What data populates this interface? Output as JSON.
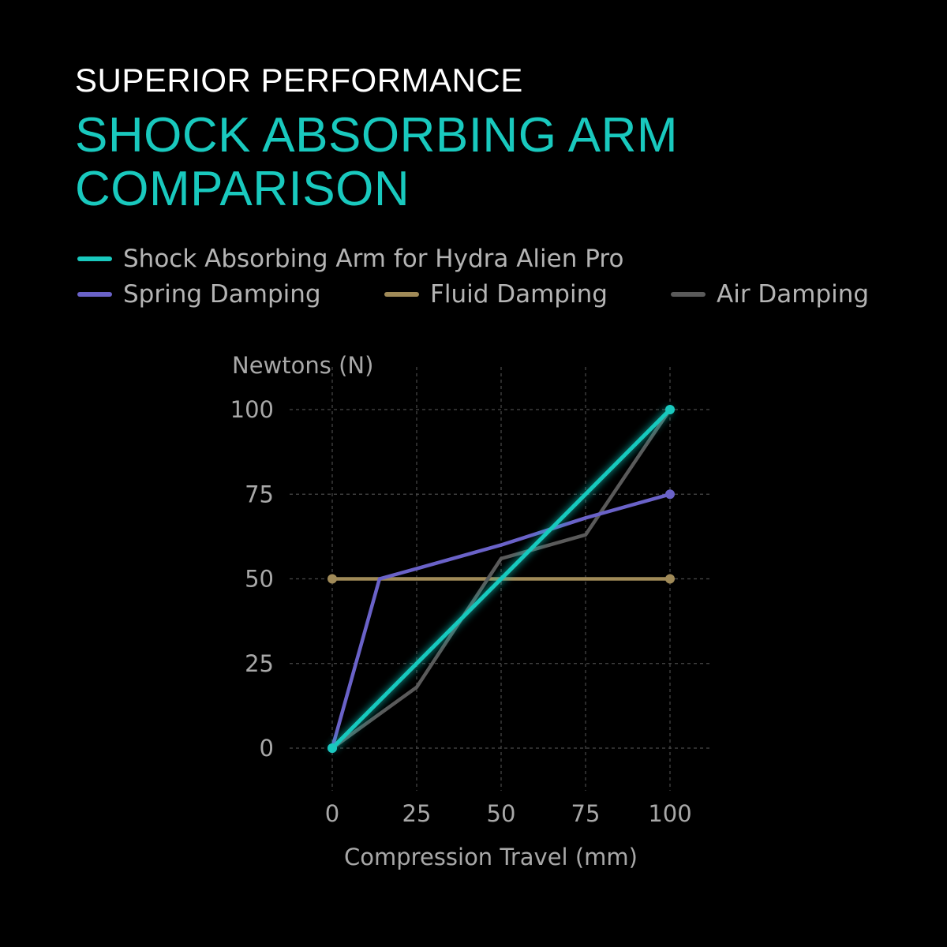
{
  "header": {
    "subtitle": "SUPERIOR PERFORMANCE",
    "title_line1": "SHOCK ABSORBING ARM",
    "title_line2": "COMPARISON"
  },
  "colors": {
    "background": "#000000",
    "accent": "#19c9be",
    "spring": "#6a62c8",
    "fluid": "#a08a58",
    "air": "#5a5a5a",
    "grid": "#4a4a4a",
    "text": "#a8a8a8"
  },
  "chart_data": {
    "type": "line",
    "title": "",
    "xlabel": "Compression Travel (mm)",
    "ylabel": "Newtons (N)",
    "xlim": [
      0,
      100
    ],
    "ylim": [
      0,
      100
    ],
    "xticks": [
      0,
      25,
      50,
      75,
      100
    ],
    "yticks": [
      0,
      25,
      50,
      75,
      100
    ],
    "grid": true,
    "legend": "top",
    "series": [
      {
        "name": "Shock Absorbing Arm for Hydra Alien Pro",
        "color": "#19c9be",
        "points": [
          [
            0,
            0
          ],
          [
            100,
            100
          ]
        ],
        "markers": [
          [
            0,
            0
          ],
          [
            100,
            100
          ]
        ]
      },
      {
        "name": "Spring Damping",
        "color": "#6a62c8",
        "points": [
          [
            0,
            0
          ],
          [
            14,
            50
          ],
          [
            25,
            53
          ],
          [
            50,
            60
          ],
          [
            75,
            68
          ],
          [
            100,
            75
          ]
        ],
        "markers": [
          [
            0,
            0
          ],
          [
            100,
            75
          ]
        ]
      },
      {
        "name": "Fluid Damping",
        "color": "#a08a58",
        "points": [
          [
            0,
            50
          ],
          [
            100,
            50
          ]
        ],
        "markers": [
          [
            0,
            50
          ],
          [
            100,
            50
          ]
        ]
      },
      {
        "name": "Air Damping",
        "color": "#5a5a5a",
        "points": [
          [
            0,
            0
          ],
          [
            25,
            18
          ],
          [
            50,
            56
          ],
          [
            75,
            63
          ],
          [
            100,
            100
          ]
        ],
        "markers": []
      }
    ]
  }
}
